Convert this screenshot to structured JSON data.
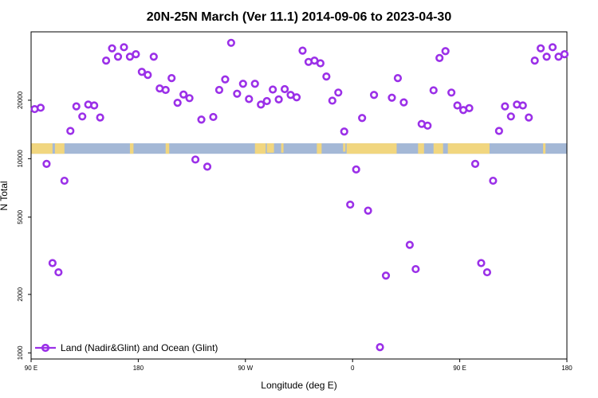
{
  "chart_data": {
    "type": "scatter",
    "title": "20N-25N March (Ver 11.1)   2014-09-06 to 2023-04-30",
    "xlabel": "Longitude (deg E)",
    "ylabel": "N Total",
    "y_scale": "log",
    "xlim": [
      90,
      540
    ],
    "ylim": [
      930,
      45000
    ],
    "x_ticks": [
      {
        "value": 90,
        "label": "90 E"
      },
      {
        "value": 180,
        "label": "180"
      },
      {
        "value": 270,
        "label": "90 W"
      },
      {
        "value": 360,
        "label": "0"
      },
      {
        "value": 450,
        "label": "90 E"
      },
      {
        "value": 540,
        "label": "180"
      }
    ],
    "y_ticks": [
      {
        "value": 1000,
        "label": "1000"
      },
      {
        "value": 2000,
        "label": "2000"
      },
      {
        "value": 5000,
        "label": "5000"
      },
      {
        "value": 10000,
        "label": "10000"
      },
      {
        "value": 20000,
        "label": "20000"
      }
    ],
    "series": [
      {
        "name": "Land (Nadir&Glint) and Ocean (Glint)",
        "color": "#9b30e8",
        "marker": "open-circle",
        "x": [
          93,
          98,
          103,
          108,
          113,
          118,
          123,
          128,
          133,
          138,
          143,
          148,
          153,
          158,
          163,
          168,
          173,
          178,
          183,
          188,
          193,
          198,
          203,
          208,
          213,
          218,
          223,
          228,
          233,
          238,
          243,
          248,
          253,
          258,
          263,
          268,
          273,
          278,
          283,
          288,
          293,
          298,
          303,
          308,
          313,
          318,
          323,
          328,
          333,
          338,
          343,
          348,
          353,
          358,
          363,
          368,
          373,
          378,
          383,
          388,
          393,
          398,
          403,
          408,
          413,
          418,
          423,
          428,
          433,
          438,
          443,
          448,
          453,
          458,
          463,
          468,
          473,
          478,
          483,
          488,
          493,
          498,
          503,
          508,
          513,
          518,
          523,
          528,
          533,
          538
        ],
        "y": [
          18000,
          18300,
          9400,
          2900,
          2600,
          7700,
          13900,
          18600,
          16500,
          19000,
          18800,
          16300,
          32000,
          37000,
          33500,
          37500,
          33500,
          34500,
          28000,
          27000,
          33500,
          23000,
          22600,
          26000,
          19400,
          21400,
          20500,
          9900,
          15900,
          9100,
          16400,
          22600,
          25600,
          39500,
          21600,
          24300,
          20300,
          24300,
          19000,
          19800,
          22700,
          20200,
          22800,
          21300,
          20700,
          36000,
          31500,
          32000,
          31000,
          26500,
          19900,
          21900,
          13800,
          5800,
          8800,
          16200,
          5400,
          21300,
          1070,
          2500,
          20600,
          26000,
          19500,
          3600,
          2700,
          15100,
          14800,
          22500,
          33000,
          35800,
          21900,
          18800,
          17800,
          18200,
          9400,
          2900,
          2600,
          7700,
          13900,
          18600,
          16500,
          19000,
          18800,
          16300,
          32000,
          37000,
          33500,
          37500,
          33500,
          34500
        ]
      }
    ],
    "legend": {
      "position": "bottom-left",
      "label": "Land (Nadir&Glint) and Ocean (Glint)"
    },
    "map_strip": {
      "y_low": 10600,
      "y_high": 12000,
      "ocean_color": "#a4b8d6",
      "land_color": "#f5d77a"
    }
  }
}
